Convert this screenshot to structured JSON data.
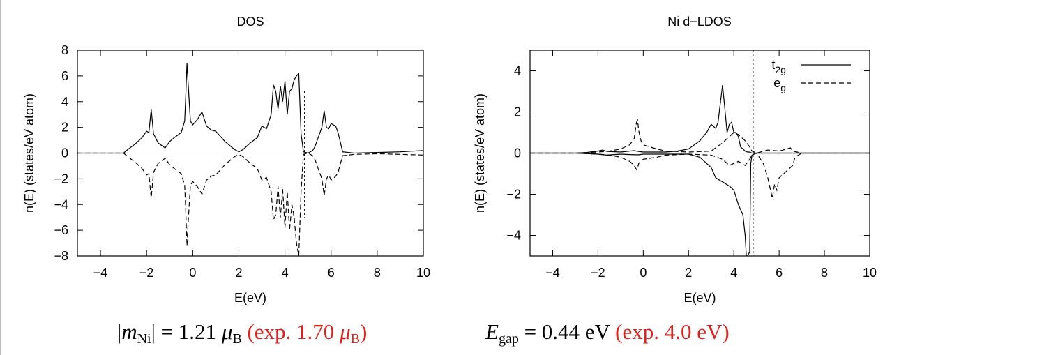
{
  "chart_data": [
    {
      "type": "line",
      "title": "DOS",
      "xlabel": "E(eV)",
      "ylabel": "n(E) (states/eV atom)",
      "xlim": [
        -5,
        10
      ],
      "ylim": [
        -8,
        8
      ],
      "xticks": [
        -4,
        -2,
        0,
        2,
        4,
        6,
        8,
        10
      ],
      "yticks": [
        -8,
        -6,
        -4,
        -2,
        0,
        2,
        4,
        6,
        8
      ],
      "grid": false,
      "series": [
        {
          "style": "solid",
          "x": [
            -5,
            -3.0,
            -2.8,
            -2.5,
            -2.2,
            -2.0,
            -1.9,
            -1.8,
            -1.7,
            -1.5,
            -1.2,
            -1.0,
            -0.8,
            -0.5,
            -0.35,
            -0.3,
            -0.25,
            -0.2,
            -0.1,
            0.0,
            0.2,
            0.4,
            0.6,
            0.8,
            1.0,
            1.4,
            1.8,
            2.0,
            2.2,
            2.5,
            2.8,
            3.0,
            3.2,
            3.4,
            3.5,
            3.6,
            3.7,
            3.8,
            3.9,
            4.0,
            4.1,
            4.2,
            4.3,
            4.4,
            4.5,
            4.6,
            4.7,
            4.8,
            5.0,
            5.2,
            5.3,
            5.6,
            5.7,
            5.8,
            5.9,
            6.0,
            6.2,
            6.3,
            6.5,
            7.0,
            8.0,
            9.0,
            10.0
          ],
          "y": [
            0,
            0,
            0.3,
            0.7,
            1.2,
            1.7,
            1.6,
            3.4,
            1.5,
            0.8,
            0.4,
            0.9,
            1.2,
            1.6,
            2.5,
            4.5,
            7.0,
            5.5,
            2.5,
            2.2,
            2.6,
            3.2,
            2.1,
            1.8,
            1.7,
            0.9,
            0.3,
            0.1,
            0.3,
            0.8,
            1.2,
            2.1,
            1.9,
            3.0,
            5.3,
            4.8,
            3.4,
            5.2,
            4.0,
            5.6,
            3.0,
            4.8,
            5.0,
            5.7,
            6.0,
            6.2,
            1.5,
            0.1,
            0,
            0.2,
            0.5,
            2.0,
            3.3,
            2.0,
            1.9,
            2.3,
            2.1,
            1.6,
            0.1,
            0.0,
            0.05,
            0.1,
            0.2
          ]
        },
        {
          "style": "dashed",
          "x": [
            -5,
            -3.0,
            -2.8,
            -2.5,
            -2.2,
            -2.0,
            -1.9,
            -1.8,
            -1.7,
            -1.5,
            -1.2,
            -1.0,
            -0.8,
            -0.5,
            -0.35,
            -0.3,
            -0.25,
            -0.2,
            -0.1,
            0.0,
            0.2,
            0.4,
            0.6,
            0.8,
            1.0,
            1.4,
            1.8,
            2.0,
            2.2,
            2.5,
            2.8,
            3.0,
            3.2,
            3.4,
            3.5,
            3.6,
            3.7,
            3.8,
            3.9,
            4.0,
            4.1,
            4.2,
            4.3,
            4.4,
            4.5,
            4.6,
            4.7,
            4.8,
            5.0,
            5.2,
            5.3,
            5.6,
            5.7,
            5.8,
            5.9,
            6.0,
            6.2,
            6.3,
            6.5,
            7.0,
            8.0,
            9.0,
            10.0
          ],
          "y": [
            0,
            0,
            -0.3,
            -0.7,
            -1.2,
            -1.7,
            -1.6,
            -3.5,
            -1.5,
            -0.8,
            -0.4,
            -0.9,
            -1.2,
            -1.6,
            -2.5,
            -4.5,
            -7.2,
            -5.5,
            -2.5,
            -2.2,
            -2.6,
            -3.2,
            -2.1,
            -1.8,
            -1.7,
            -0.9,
            -0.3,
            -0.1,
            -0.3,
            -0.8,
            -1.2,
            -2.1,
            -1.9,
            -3.0,
            -5.2,
            -4.8,
            -2.6,
            -5.0,
            -2.8,
            -5.8,
            -3.0,
            -6.0,
            -4.0,
            -5.0,
            -7.0,
            -8.0,
            -3.0,
            -0.1,
            0,
            -0.2,
            -0.5,
            -2.0,
            -3.3,
            -2.0,
            -1.7,
            -2.1,
            -1.8,
            -1.5,
            -0.2,
            -0.1,
            -0.05,
            -0.1,
            -0.15
          ]
        }
      ],
      "fermi_line": {
        "x": 4.85,
        "style": "dotted"
      }
    },
    {
      "type": "line",
      "title": "Ni d−LDOS",
      "xlabel": "E(eV)",
      "ylabel": "n(E) (states/eV atom)",
      "xlim": [
        -5,
        10
      ],
      "ylim": [
        -5,
        5
      ],
      "xticks": [
        -4,
        -2,
        0,
        2,
        4,
        6,
        8,
        10
      ],
      "yticks": [
        -4,
        -2,
        0,
        2,
        4
      ],
      "grid": false,
      "legend": "top-right",
      "series": [
        {
          "name": "t2g",
          "style": "solid",
          "x": [
            -5,
            -3.0,
            -2.5,
            -2.0,
            -1.8,
            -1.6,
            -1.0,
            -0.6,
            -0.4,
            -0.3,
            -0.2,
            0.0,
            0.5,
            1.0,
            1.5,
            2.0,
            2.5,
            2.8,
            3.0,
            3.2,
            3.3,
            3.5,
            3.6,
            3.7,
            3.8,
            3.9,
            4.0,
            4.1,
            4.2,
            4.3,
            4.4,
            4.5,
            4.6,
            4.7,
            4.8,
            5.0,
            10.0
          ],
          "y": [
            0,
            0,
            0.03,
            0.1,
            0.15,
            0.08,
            0.05,
            0.1,
            0.12,
            0.1,
            0.08,
            0.05,
            0.05,
            0.05,
            0.1,
            0.2,
            0.6,
            1.0,
            1.4,
            1.2,
            1.5,
            3.3,
            2.2,
            1.0,
            1.4,
            1.5,
            1.0,
            1.0,
            0.8,
            0.3,
            0.2,
            0.1,
            0.05,
            0.05,
            0.0,
            0.0,
            0.0
          ]
        },
        {
          "name": "t2g-down",
          "style": "solid",
          "x": [
            -5,
            -3.0,
            -2.0,
            -1.6,
            -1.0,
            -0.4,
            -0.2,
            0.0,
            1.0,
            2.0,
            2.5,
            3.0,
            3.2,
            3.5,
            3.8,
            4.0,
            4.2,
            4.4,
            4.5,
            4.55,
            4.6,
            4.7,
            4.75,
            4.8,
            5.0,
            10.0
          ],
          "y": [
            0,
            0,
            -0.05,
            -0.1,
            -0.05,
            -0.08,
            -0.08,
            -0.05,
            -0.05,
            -0.05,
            -0.2,
            -0.7,
            -1.2,
            -1.4,
            -1.6,
            -1.8,
            -2.5,
            -3.0,
            -4.0,
            -5.0,
            -5.0,
            -4.8,
            -0.5,
            -0.1,
            0.0,
            0.0
          ]
        },
        {
          "name": "eg",
          "style": "dashed",
          "x": [
            -5,
            -3.0,
            -2.0,
            -1.5,
            -1.0,
            -0.6,
            -0.4,
            -0.3,
            -0.25,
            -0.2,
            -0.1,
            0.0,
            0.3,
            0.6,
            1.0,
            2.0,
            3.0,
            3.5,
            3.8,
            4.0,
            4.2,
            4.5,
            4.7,
            4.8,
            5.0,
            5.5,
            6.0,
            6.5,
            6.6,
            7.0,
            10.0
          ],
          "y": [
            0,
            0,
            0.05,
            0.1,
            0.2,
            0.4,
            0.7,
            1.5,
            1.6,
            1.1,
            0.6,
            0.4,
            0.3,
            0.2,
            0.1,
            0.05,
            0.1,
            0.5,
            0.8,
            1.0,
            0.9,
            0.6,
            0.3,
            0.1,
            0.0,
            0.15,
            0.1,
            0.25,
            0.1,
            0.0,
            0.0
          ]
        },
        {
          "name": "eg-down",
          "style": "dashed",
          "x": [
            -5,
            -3.0,
            -2.0,
            -1.5,
            -1.0,
            -0.6,
            -0.4,
            -0.3,
            -0.25,
            -0.2,
            -0.1,
            0.0,
            0.3,
            0.6,
            1.0,
            2.0,
            3.0,
            3.5,
            3.8,
            4.0,
            4.2,
            4.5,
            4.7,
            4.8,
            5.0,
            5.3,
            5.5,
            5.7,
            5.8,
            5.9,
            6.0,
            6.2,
            6.4,
            6.6,
            6.7,
            7.0,
            10.0
          ],
          "y": [
            0,
            0,
            -0.05,
            -0.1,
            -0.2,
            -0.4,
            -0.6,
            -0.8,
            -0.7,
            -0.5,
            -0.4,
            -0.3,
            -0.25,
            -0.2,
            -0.1,
            -0.05,
            -0.1,
            -0.3,
            -0.6,
            -0.5,
            -0.4,
            -0.6,
            -0.3,
            -0.1,
            0.0,
            -0.5,
            -1.2,
            -2.2,
            -1.5,
            -1.8,
            -1.2,
            -1.0,
            -0.8,
            -0.6,
            -0.2,
            0.0,
            0.0
          ]
        }
      ],
      "legend_entries": [
        {
          "series": "t2g",
          "base": "t",
          "sub": "2g",
          "style": "solid"
        },
        {
          "series": "eg",
          "base": "e",
          "sub": "g",
          "style": "dashed"
        }
      ],
      "fermi_line": {
        "x": 4.85,
        "style": "dotted"
      }
    }
  ],
  "caption": {
    "moment_lhs_symbol": "m",
    "moment_lhs_sub": "Ni",
    "moment_value": "= 1.21 ",
    "moment_unit_symbol": "μ",
    "moment_unit_sub": "B",
    "moment_exp_prefix": "(exp. 1.70 ",
    "moment_exp_unit_symbol": "μ",
    "moment_exp_unit_sub": "B",
    "moment_exp_suffix": ")",
    "gap_symbol": "E",
    "gap_sub": "gap",
    "gap_value": " = 0.44 eV ",
    "gap_exp": "(exp. 4.0 eV)",
    "colors": {
      "experiment": "#e0201b"
    }
  }
}
